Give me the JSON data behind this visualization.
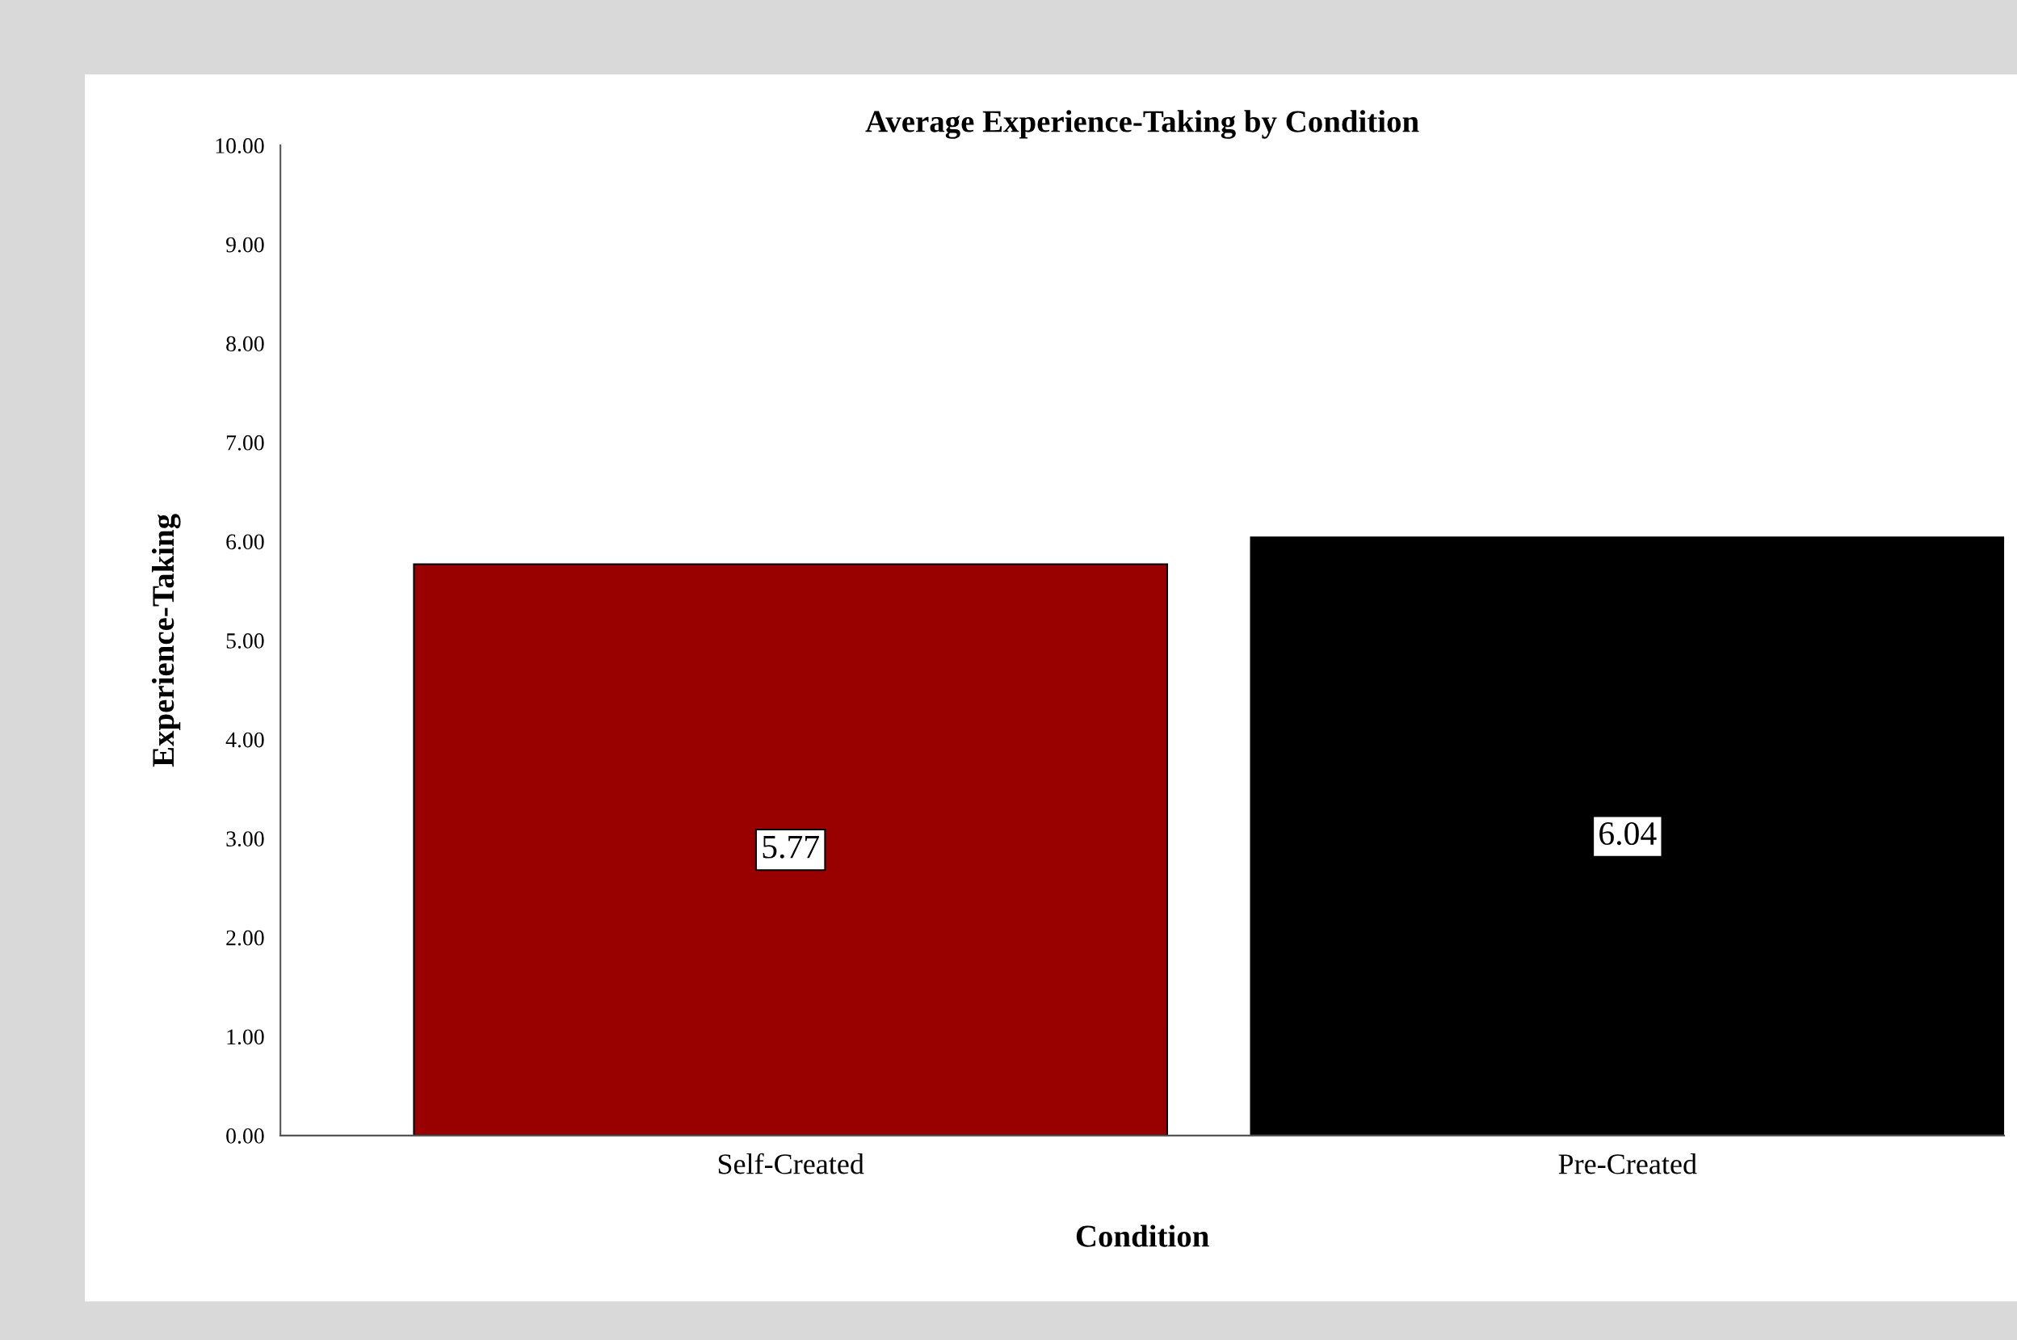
{
  "chart_data": {
    "type": "bar",
    "title": "Average Experience-Taking by Condition",
    "xlabel": "Condition",
    "ylabel": "Experience-Taking",
    "categories": [
      "Self-Created",
      "Pre-Created"
    ],
    "values": [
      5.77,
      6.04
    ],
    "colors": [
      "#990000",
      "#000000"
    ],
    "ylim": [
      0,
      10
    ],
    "yticks": [
      {
        "value": 0,
        "label": "0.00"
      },
      {
        "value": 1,
        "label": "1.00"
      },
      {
        "value": 2,
        "label": "2.00"
      },
      {
        "value": 3,
        "label": "3.00"
      },
      {
        "value": 4,
        "label": "4.00"
      },
      {
        "value": 5,
        "label": "5.00"
      },
      {
        "value": 6,
        "label": "6.00"
      },
      {
        "value": 7,
        "label": "7.00"
      },
      {
        "value": 8,
        "label": "8.00"
      },
      {
        "value": 9,
        "label": "9.00"
      },
      {
        "value": 10,
        "label": "10.00"
      }
    ],
    "data_labels": true,
    "grid": false,
    "legend": false
  }
}
